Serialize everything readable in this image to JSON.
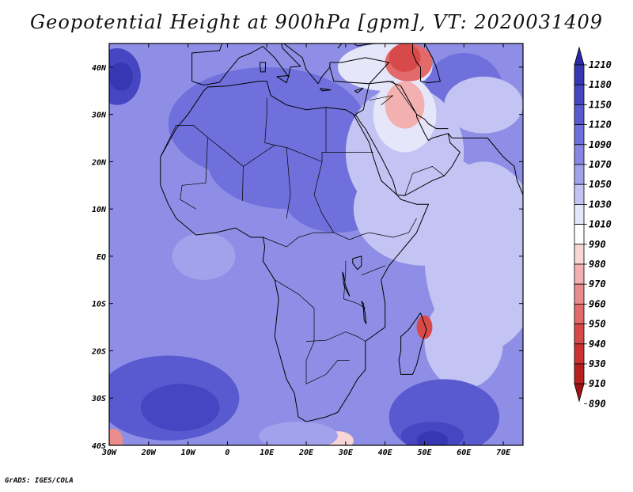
{
  "title": "Geopotential Height at 900hPa [gpm], VT: 2020031409",
  "footer": "GrADS: IGES/COLA",
  "map": {
    "lon_range": [
      -30,
      75
    ],
    "lat_range": [
      -40,
      45
    ],
    "x_ticks": [
      {
        "lon": -30,
        "label": "30W"
      },
      {
        "lon": -20,
        "label": "20W"
      },
      {
        "lon": -10,
        "label": "10W"
      },
      {
        "lon": 0,
        "label": "0"
      },
      {
        "lon": 10,
        "label": "10E"
      },
      {
        "lon": 20,
        "label": "20E"
      },
      {
        "lon": 30,
        "label": "30E"
      },
      {
        "lon": 40,
        "label": "40E"
      },
      {
        "lon": 50,
        "label": "50E"
      },
      {
        "lon": 60,
        "label": "60E"
      },
      {
        "lon": 70,
        "label": "70E"
      }
    ],
    "y_ticks": [
      {
        "lat": 40,
        "label": "40N"
      },
      {
        "lat": 30,
        "label": "30N"
      },
      {
        "lat": 20,
        "label": "20N"
      },
      {
        "lat": 10,
        "label": "10N"
      },
      {
        "lat": 0,
        "label": "EQ"
      },
      {
        "lat": -10,
        "label": "10S"
      },
      {
        "lat": -20,
        "label": "20S"
      },
      {
        "lat": -30,
        "label": "30S"
      },
      {
        "lat": -40,
        "label": "40S"
      }
    ],
    "background_color": "#8e8ee6"
  },
  "colorbar": {
    "levels": [
      "1210",
      "1180",
      "1150",
      "1120",
      "1090",
      "1070",
      "1050",
      "1030",
      "1010",
      "990",
      "980",
      "970",
      "960",
      "950",
      "940",
      "930",
      "910",
      "890"
    ],
    "colors": [
      "#2a2aa6",
      "#3737b4",
      "#4646c2",
      "#5a5ad0",
      "#7070dc",
      "#8686e4",
      "#a2a2ec",
      "#c4c4f4",
      "#e6e6fa",
      "#ffffff",
      "#f8d6d6",
      "#f2b0b0",
      "#ea8c8c",
      "#e26a6a",
      "#d84a4a",
      "#cc3232",
      "#b82020",
      "#9e1414"
    ]
  },
  "field_blobs": [
    {
      "lon": -28,
      "lat": 38,
      "rx": 6,
      "ry": 6,
      "color": "#4646c2"
    },
    {
      "lon": -27,
      "lat": 38,
      "rx": 3,
      "ry": 3,
      "color": "#3737b4"
    },
    {
      "lon": 10,
      "lat": 28,
      "rx": 25,
      "ry": 12,
      "color": "#7070dc"
    },
    {
      "lon": 15,
      "lat": 20,
      "rx": 20,
      "ry": 10,
      "color": "#7070dc"
    },
    {
      "lon": 28,
      "lat": 13,
      "rx": 14,
      "ry": 8,
      "color": "#7070dc"
    },
    {
      "lon": 60,
      "lat": 35,
      "rx": 10,
      "ry": 8,
      "color": "#7070dc"
    },
    {
      "lon": 65,
      "lat": 32,
      "rx": 10,
      "ry": 6,
      "color": "#c4c4f4"
    },
    {
      "lon": 45,
      "lat": 22,
      "rx": 15,
      "ry": 14,
      "color": "#c4c4f4"
    },
    {
      "lon": 50,
      "lat": 10,
      "rx": 18,
      "ry": 12,
      "color": "#c4c4f4"
    },
    {
      "lon": 65,
      "lat": 0,
      "rx": 15,
      "ry": 20,
      "color": "#c4c4f4"
    },
    {
      "lon": 60,
      "lat": -18,
      "rx": 10,
      "ry": 10,
      "color": "#c4c4f4"
    },
    {
      "lon": 45,
      "lat": 30,
      "rx": 8,
      "ry": 8,
      "color": "#e6e6fa"
    },
    {
      "lon": 40,
      "lat": 40,
      "rx": 12,
      "ry": 5,
      "color": "#e6e6fa"
    },
    {
      "lon": 45,
      "lat": 32,
      "rx": 5,
      "ry": 5,
      "color": "#f2b0b0"
    },
    {
      "lon": 46,
      "lat": 41,
      "rx": 6,
      "ry": 4,
      "color": "#e26a6a"
    },
    {
      "lon": 45,
      "lat": 42,
      "rx": 4,
      "ry": 3,
      "color": "#d84a4a"
    },
    {
      "lon": 50,
      "lat": -15,
      "rx": 2,
      "ry": 2.5,
      "color": "#d84a4a"
    },
    {
      "lon": -15,
      "lat": -30,
      "rx": 18,
      "ry": 9,
      "color": "#5a5ad0"
    },
    {
      "lon": -12,
      "lat": -32,
      "rx": 10,
      "ry": 5,
      "color": "#4646c2"
    },
    {
      "lon": 55,
      "lat": -34,
      "rx": 14,
      "ry": 8,
      "color": "#5a5ad0"
    },
    {
      "lon": 52,
      "lat": -38,
      "rx": 8,
      "ry": 3,
      "color": "#4646c2"
    },
    {
      "lon": 52,
      "lat": -39,
      "rx": 4,
      "ry": 2,
      "color": "#3737b4"
    },
    {
      "lon": 28,
      "lat": -39,
      "rx": 4,
      "ry": 2,
      "color": "#f8d6d6"
    },
    {
      "lon": -29,
      "lat": -39,
      "rx": 2.5,
      "ry": 2.5,
      "color": "#ea8c8c"
    },
    {
      "lon": -6,
      "lat": 0,
      "rx": 8,
      "ry": 5,
      "color": "#a2a2ec"
    },
    {
      "lon": 18,
      "lat": -38,
      "rx": 10,
      "ry": 3,
      "color": "#a2a2ec"
    }
  ]
}
